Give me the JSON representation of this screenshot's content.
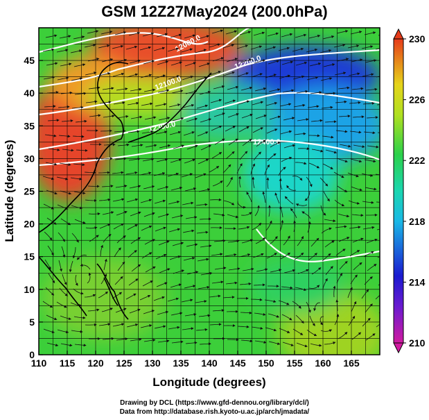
{
  "title": "GSM 12Z27May2024 (200.0hPa)",
  "axes": {
    "x_label": "Longitude (degrees)",
    "y_label": "Latitude (degrees)",
    "x_ticks": [
      "110",
      "115",
      "120",
      "125",
      "130",
      "135",
      "140",
      "145",
      "150",
      "155",
      "160",
      "165"
    ],
    "y_ticks": [
      "0",
      "5",
      "10",
      "15",
      "20",
      "25",
      "30",
      "35",
      "40",
      "45"
    ],
    "x_range": [
      110,
      170
    ],
    "y_range": [
      0,
      50
    ]
  },
  "colorbar": {
    "labels": [
      "230",
      "226",
      "222",
      "218",
      "214",
      "210"
    ],
    "range": [
      210,
      230
    ],
    "colors": [
      "#d11aa0",
      "#1a1ad0",
      "#19b8e6",
      "#2bd14a",
      "#e6d41a",
      "#e63b1a"
    ]
  },
  "contour_labels": [
    "12000.0",
    "12100.0",
    "12200.0",
    "12300.0",
    "12400.0"
  ],
  "credits": {
    "line1": "Drawing by DCL (https://www.gfd-dennou.org/library/dcl/)",
    "line2": "Data from http://database.rish.kyoto-u.ac.jp/arch/jmadata/"
  },
  "chart_data": {
    "type": "heatmap",
    "title": "GSM 12Z27May2024 (200.0hPa)",
    "xlabel": "Longitude (degrees)",
    "ylabel": "Latitude (degrees)",
    "xlim": [
      110,
      170
    ],
    "ylim": [
      0,
      50
    ],
    "colorbar_range": [
      210,
      230
    ],
    "contours": [
      "12000.0",
      "12100.0",
      "12200.0",
      "12300.0",
      "12400.0"
    ],
    "grid": true
  }
}
